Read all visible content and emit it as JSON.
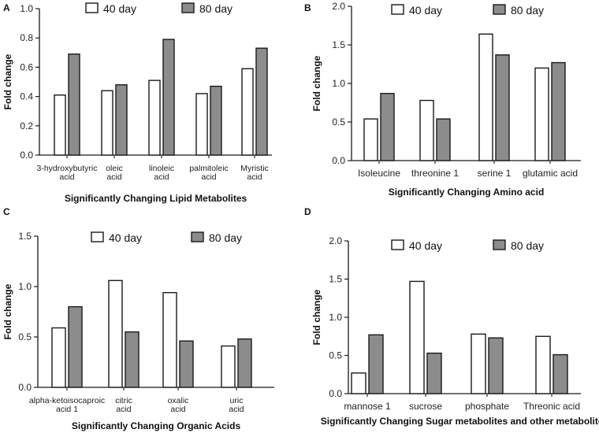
{
  "colors": {
    "series_40_fill": "#ffffff",
    "series_80_fill": "#8c8c8c",
    "stroke": "#1a1a1a"
  },
  "chart_data": [
    {
      "panel": "A",
      "type": "bar",
      "xlabel": "Significantly Changing Lipid Metabolites",
      "ylabel": "Fold change",
      "ylim": [
        0,
        1.0
      ],
      "yticks": [
        "0.0",
        "0.2",
        "0.4",
        "0.6",
        "0.8",
        "1.0"
      ],
      "categories": [
        [
          "3-hydroxybutyric",
          "acid"
        ],
        [
          "oleic",
          "acid"
        ],
        [
          "linoleic",
          "acid"
        ],
        [
          "palmitoleic",
          "acid"
        ],
        [
          "Myristic",
          "acid"
        ]
      ],
      "series": [
        {
          "name": "40 day",
          "values": [
            0.41,
            0.44,
            0.51,
            0.42,
            0.59
          ]
        },
        {
          "name": "80 day",
          "values": [
            0.69,
            0.48,
            0.79,
            0.47,
            0.73
          ]
        }
      ],
      "legend": "top-center"
    },
    {
      "panel": "B",
      "type": "bar",
      "xlabel": "Significantly Changing Amino acid",
      "ylabel": "Fold change",
      "ylim": [
        0,
        2.0
      ],
      "yticks": [
        "0.0",
        "0.5",
        "1.0",
        "1.5",
        "2.0"
      ],
      "categories": [
        [
          "Isoleucine"
        ],
        [
          "threonine 1"
        ],
        [
          "serine 1"
        ],
        [
          "glutamic acid"
        ]
      ],
      "series": [
        {
          "name": "40 day",
          "values": [
            0.54,
            0.78,
            1.64,
            1.2
          ]
        },
        {
          "name": "80 day",
          "values": [
            0.87,
            0.54,
            1.37,
            1.27
          ]
        }
      ],
      "legend": "top-center"
    },
    {
      "panel": "C",
      "type": "bar",
      "xlabel": "Significantly Changing Organic Acids",
      "ylabel": "Fold change",
      "ylim": [
        0,
        1.5
      ],
      "yticks": [
        "0.0",
        "0.5",
        "1.0",
        "1.5"
      ],
      "categories": [
        [
          "alpha-ketoisocaproic",
          "acid 1"
        ],
        [
          "citric",
          "acid"
        ],
        [
          "oxalic",
          "acid"
        ],
        [
          "uric",
          "acid"
        ]
      ],
      "series": [
        {
          "name": "40 day",
          "values": [
            0.59,
            1.06,
            0.94,
            0.41
          ]
        },
        {
          "name": "80 day",
          "values": [
            0.8,
            0.55,
            0.46,
            0.48
          ]
        }
      ],
      "legend": "top-center"
    },
    {
      "panel": "D",
      "type": "bar",
      "xlabel": "Significantly Changing Sugar metabolites and other metabolites",
      "ylabel": "Fold change",
      "ylim": [
        0,
        2.0
      ],
      "yticks": [
        "0.0",
        "0.5",
        "1.0",
        "1.5",
        "2.0"
      ],
      "categories": [
        [
          "mannose 1"
        ],
        [
          "sucrose"
        ],
        [
          "phosphate"
        ],
        [
          "Threonic acid"
        ]
      ],
      "series": [
        {
          "name": "40 day",
          "values": [
            0.27,
            1.47,
            0.78,
            0.75
          ]
        },
        {
          "name": "80 day",
          "values": [
            0.77,
            0.53,
            0.73,
            0.51
          ]
        }
      ],
      "legend": "top-center"
    }
  ]
}
